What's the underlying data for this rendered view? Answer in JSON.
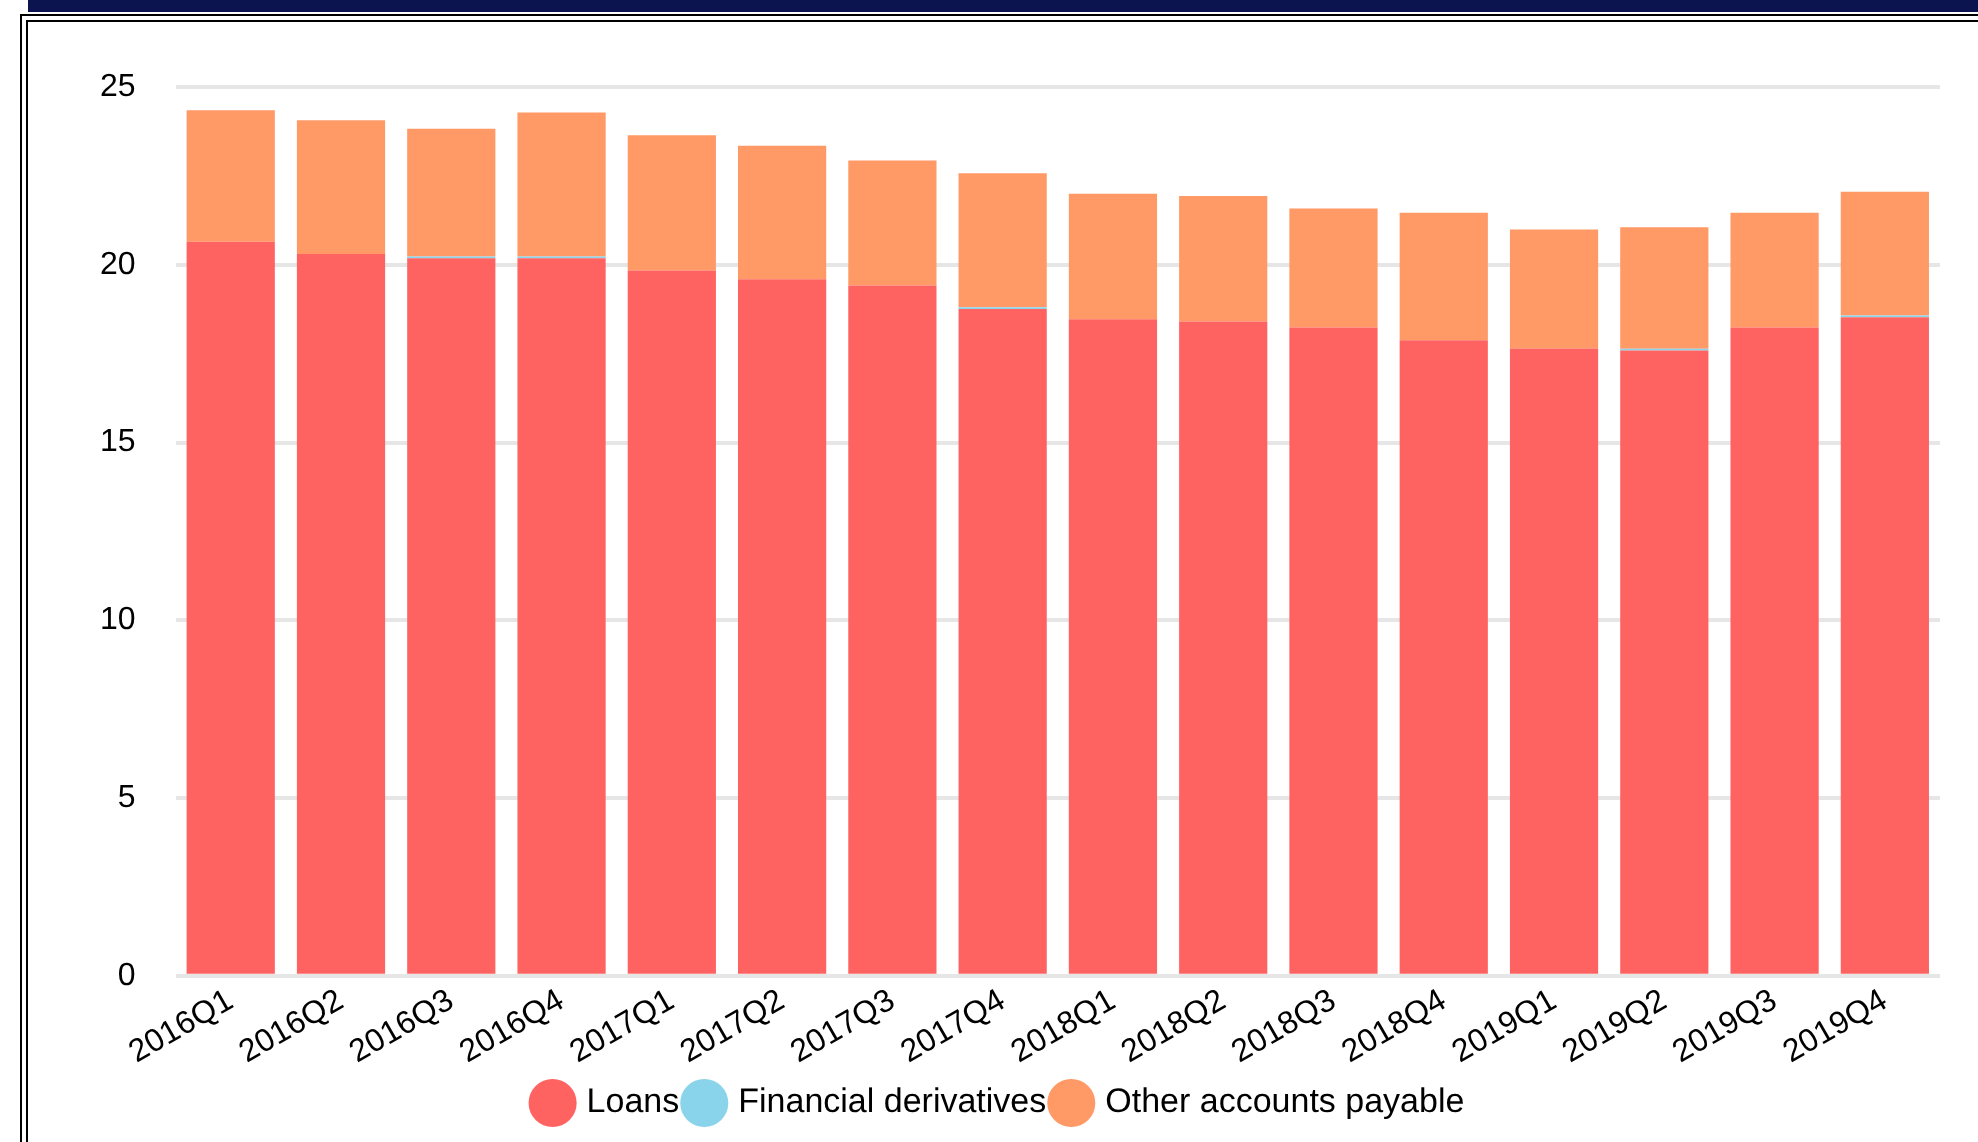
{
  "chart_data": {
    "type": "bar",
    "stacked": true,
    "categories": [
      "2016Q1",
      "2016Q2",
      "2016Q3",
      "2016Q4",
      "2017Q1",
      "2017Q2",
      "2017Q3",
      "2017Q4",
      "2018Q1",
      "2018Q2",
      "2018Q3",
      "2018Q4",
      "2019Q1",
      "2019Q2",
      "2019Q3",
      "2019Q4"
    ],
    "series": [
      {
        "name": "Loans",
        "color": "#ff6361",
        "values": [
          20.65,
          20.31,
          20.19,
          20.19,
          19.84,
          19.6,
          19.42,
          18.76,
          18.47,
          18.41,
          18.24,
          17.88,
          17.65,
          17.59,
          18.24,
          18.53
        ]
      },
      {
        "name": "Financial derivatives",
        "color": "#8ad4eb",
        "values": [
          0,
          0,
          0.05,
          0.05,
          0,
          0,
          0,
          0.05,
          0,
          0,
          0,
          0,
          0,
          0.05,
          0,
          0.05
        ]
      },
      {
        "name": "Other accounts payable",
        "color": "#ff9966",
        "values": [
          3.7,
          3.76,
          3.59,
          4.05,
          3.81,
          3.75,
          3.52,
          3.77,
          3.53,
          3.53,
          3.35,
          3.59,
          3.35,
          3.42,
          3.23,
          3.48
        ]
      }
    ],
    "ylim": [
      0,
      25
    ],
    "yticks": [
      0,
      5,
      10,
      15,
      20,
      25
    ],
    "grid": "y",
    "legend": "bottom"
  }
}
